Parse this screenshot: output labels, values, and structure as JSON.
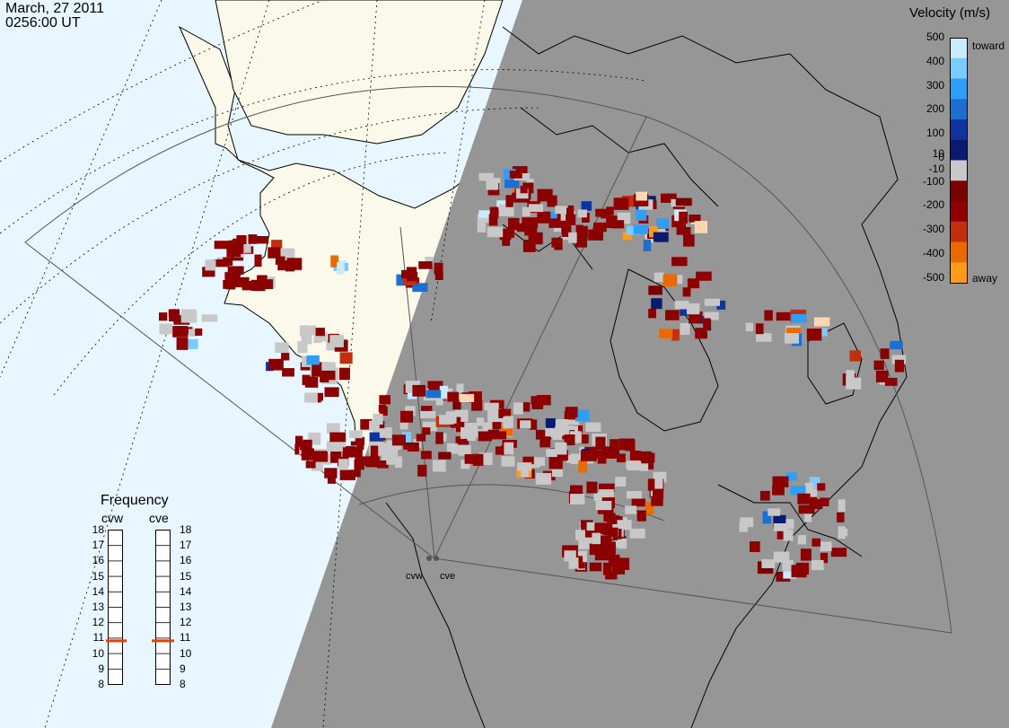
{
  "timestamp": {
    "date": "March, 27 2011",
    "time": "0256:00 UT"
  },
  "colorbar": {
    "title": "Velocity (m/s)",
    "ticks": [
      "500",
      "400",
      "300",
      "200",
      "100",
      "10",
      "0",
      "-10",
      "-100",
      "-200",
      "-300",
      "-400",
      "-500"
    ],
    "toward_label": "toward",
    "away_label": "away",
    "stops": [
      {
        "v": 500,
        "color": "#c9eaff"
      },
      {
        "v": 400,
        "color": "#7ccbff"
      },
      {
        "v": 300,
        "color": "#2f9ff5"
      },
      {
        "v": 200,
        "color": "#1c6fd0"
      },
      {
        "v": 100,
        "color": "#10339d"
      },
      {
        "v": 10,
        "color": "#0a1a70"
      },
      {
        "v": 0,
        "color": "#c8c8c8"
      },
      {
        "v": -10,
        "color": "#7a0000"
      },
      {
        "v": -100,
        "color": "#900000"
      },
      {
        "v": -200,
        "color": "#c32e0c"
      },
      {
        "v": -300,
        "color": "#ea6a00"
      },
      {
        "v": -400,
        "color": "#ff9a1c"
      },
      {
        "v": -500,
        "color": "#ffd6b0"
      }
    ]
  },
  "radars": [
    {
      "id": "cvw",
      "label": "cvw",
      "freq_mhz": 10.8
    },
    {
      "id": "cve",
      "label": "cve",
      "freq_mhz": 10.8
    }
  ],
  "frequency_panel": {
    "title": "Frequency",
    "range_mhz": [
      8,
      18
    ],
    "scale_labels": [
      "18",
      "17",
      "16",
      "15",
      "14",
      "13",
      "12",
      "11",
      "10",
      "9",
      "8"
    ]
  },
  "colors": {
    "night_side": "#969696",
    "ocean_day": "#e8f6ff",
    "land_day": "#fbf9ea",
    "ground_scatter": "#c8c8c8",
    "frequency_marker": "#e0440c"
  }
}
